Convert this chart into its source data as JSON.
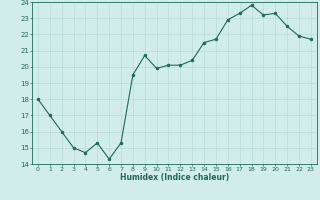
{
  "x": [
    0,
    1,
    2,
    3,
    4,
    5,
    6,
    7,
    8,
    9,
    10,
    11,
    12,
    13,
    14,
    15,
    16,
    17,
    18,
    19,
    20,
    21,
    22,
    23
  ],
  "y": [
    18.0,
    17.0,
    16.0,
    15.0,
    14.7,
    15.3,
    14.3,
    15.3,
    19.5,
    20.7,
    19.9,
    20.1,
    20.1,
    20.4,
    21.5,
    21.7,
    22.9,
    23.3,
    23.8,
    23.2,
    23.3,
    22.5,
    21.9,
    21.7
  ],
  "xlabel": "Humidex (Indice chaleur)",
  "ylim": [
    14,
    24
  ],
  "xlim": [
    -0.5,
    23.5
  ],
  "yticks": [
    14,
    15,
    16,
    17,
    18,
    19,
    20,
    21,
    22,
    23,
    24
  ],
  "xticks": [
    0,
    1,
    2,
    3,
    4,
    5,
    6,
    7,
    8,
    9,
    10,
    11,
    12,
    13,
    14,
    15,
    16,
    17,
    18,
    19,
    20,
    21,
    22,
    23
  ],
  "line_color": "#1a6b5a",
  "marker_color": "#1a6b5a",
  "bg_color": "#d0eceb",
  "grid_color": "#b8dbd9",
  "tick_color": "#1a6b5a",
  "label_color": "#1a6b5a"
}
